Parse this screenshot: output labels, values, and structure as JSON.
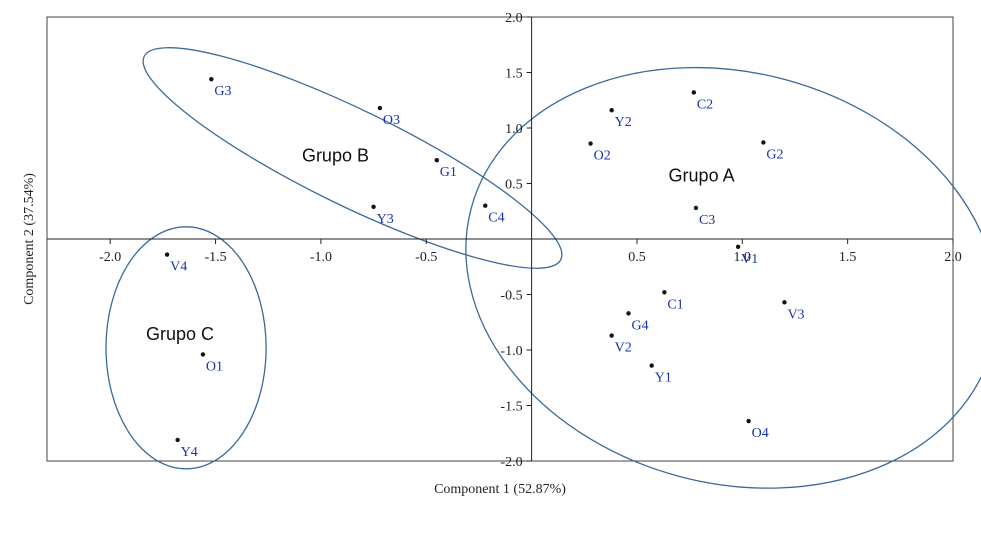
{
  "chart_data": {
    "type": "scatter",
    "title": "",
    "xlabel": "Component 1 (52.87%)",
    "ylabel": "Component 2 (37.54%)",
    "xlim": [
      -2.3,
      2.0
    ],
    "ylim": [
      -2.0,
      2.0
    ],
    "x_ticks": [
      -2.0,
      -1.5,
      -1.0,
      -0.5,
      0.5,
      1.0,
      1.5,
      2.0
    ],
    "y_ticks": [
      2.0,
      1.5,
      1.0,
      0.5,
      -0.5,
      -1.0,
      -1.5,
      -2.0
    ],
    "x_tick_labels": [
      "-2.0",
      "-1.5",
      "-1.0",
      "-0.5",
      "0.5",
      "1.0",
      "1.5",
      "2.0"
    ],
    "y_tick_labels": [
      "2.0",
      "1.5",
      "1.0",
      "0.5",
      "-0.5",
      "-1.0",
      "-1.5",
      "-2.0"
    ],
    "grid": false,
    "points": [
      {
        "label": "G3",
        "x": -1.52,
        "y": 1.44
      },
      {
        "label": "O3",
        "x": -0.72,
        "y": 1.18
      },
      {
        "label": "G1",
        "x": -0.45,
        "y": 0.71
      },
      {
        "label": "Y3",
        "x": -0.75,
        "y": 0.29
      },
      {
        "label": "C4",
        "x": -0.22,
        "y": 0.3
      },
      {
        "label": "C2",
        "x": 0.77,
        "y": 1.32
      },
      {
        "label": "Y2",
        "x": 0.38,
        "y": 1.16
      },
      {
        "label": "O2",
        "x": 0.28,
        "y": 0.86
      },
      {
        "label": "G2",
        "x": 1.1,
        "y": 0.87
      },
      {
        "label": "C3",
        "x": 0.78,
        "y": 0.28
      },
      {
        "label": "V1",
        "x": 0.98,
        "y": -0.07
      },
      {
        "label": "C1",
        "x": 0.63,
        "y": -0.48
      },
      {
        "label": "V3",
        "x": 1.2,
        "y": -0.57
      },
      {
        "label": "G4",
        "x": 0.46,
        "y": -0.67
      },
      {
        "label": "V2",
        "x": 0.38,
        "y": -0.87
      },
      {
        "label": "Y1",
        "x": 0.57,
        "y": -1.14
      },
      {
        "label": "O4",
        "x": 1.03,
        "y": -1.64
      },
      {
        "label": "V4",
        "x": -1.73,
        "y": -0.14
      },
      {
        "label": "O1",
        "x": -1.56,
        "y": -1.04
      },
      {
        "label": "Y4",
        "x": -1.68,
        "y": -1.81
      }
    ],
    "groups": [
      {
        "name": "Grupo A",
        "cx": 0.95,
        "cy": -0.35,
        "rx": 1.28,
        "ry": 1.85,
        "angle": 15
      },
      {
        "name": "Grupo B",
        "cx": -0.85,
        "cy": 0.73,
        "rx": 1.1,
        "ry": 0.43,
        "angle": 26
      },
      {
        "name": "Grupo C",
        "cx": -1.64,
        "cy": -0.98,
        "rx": 0.38,
        "ry": 1.09,
        "angle": 0
      }
    ]
  },
  "colors": {
    "point": "#111111",
    "label": "#1a2fb0",
    "ellipse": "#3a6a9a",
    "axis": "#222222",
    "frame": "#444444"
  }
}
